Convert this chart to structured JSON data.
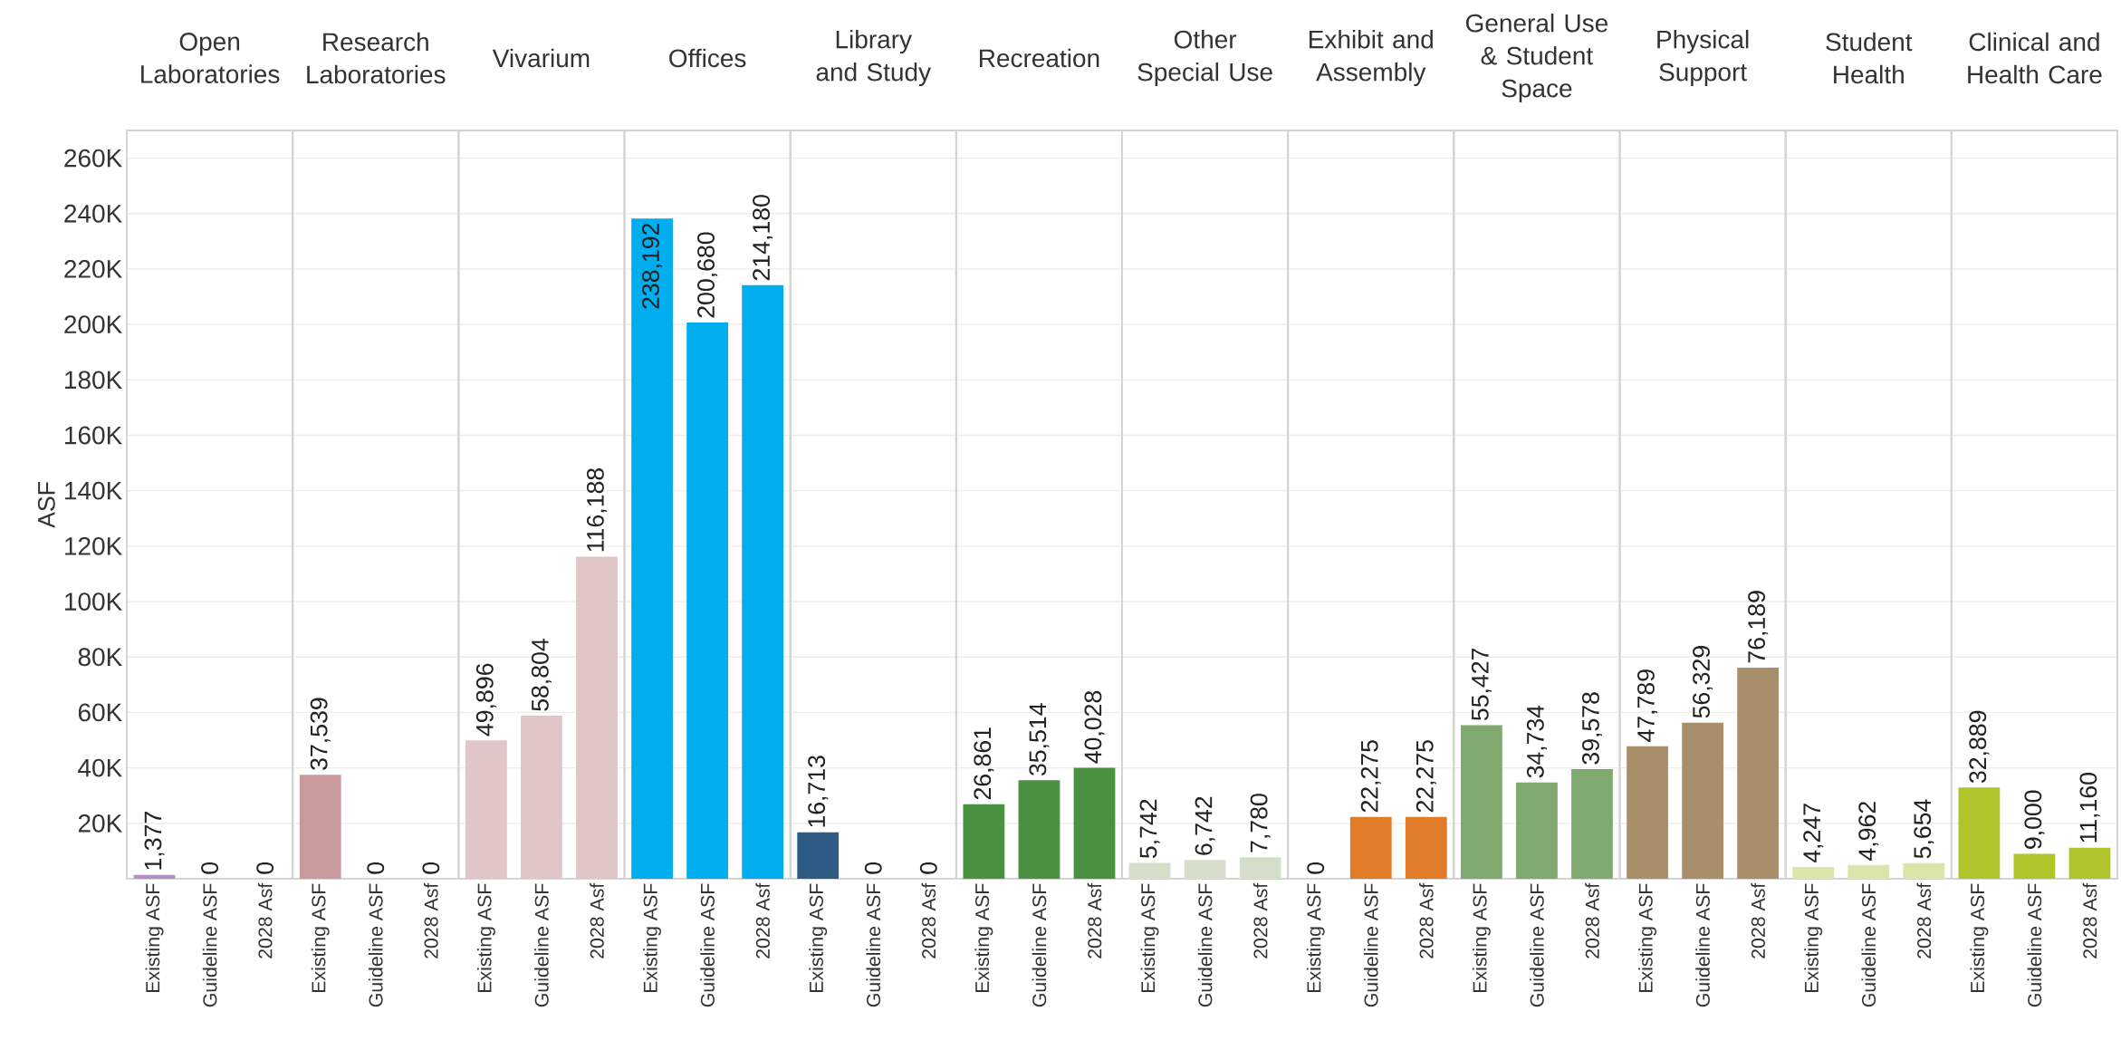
{
  "chart_data": [
    {
      "type": "bar",
      "title": "Open Laboratories",
      "ylabel": "ASF",
      "categories": [
        "Existing ASF",
        "Guideline ASF",
        "2028 Asf"
      ],
      "values": [
        1377,
        0,
        0
      ],
      "value_labels": [
        "1,377",
        "0",
        "0"
      ],
      "color": "#b48fc4",
      "ylim": [
        0,
        270000
      ],
      "yticks": [
        {
          "value": 20000,
          "label": "20K"
        },
        {
          "value": 40000,
          "label": "40K"
        },
        {
          "value": 60000,
          "label": "60K"
        },
        {
          "value": 80000,
          "label": "80K"
        },
        {
          "value": 100000,
          "label": "100K"
        },
        {
          "value": 120000,
          "label": "120K"
        },
        {
          "value": 140000,
          "label": "140K"
        },
        {
          "value": 160000,
          "label": "160K"
        },
        {
          "value": 180000,
          "label": "180K"
        },
        {
          "value": 200000,
          "label": "200K"
        },
        {
          "value": 220000,
          "label": "220K"
        },
        {
          "value": 240000,
          "label": "240K"
        },
        {
          "value": 260000,
          "label": "260K"
        }
      ],
      "grid": "y"
    },
    {
      "type": "bar",
      "title": "Research Laboratories",
      "categories": [
        "Existing ASF",
        "Guideline ASF",
        "2028 Asf"
      ],
      "values": [
        37539,
        0,
        0
      ],
      "value_labels": [
        "37,539",
        "0",
        "0"
      ],
      "color": "#c9999e",
      "ylim": [
        0,
        270000
      ],
      "yticks": [
        20000,
        40000,
        60000,
        80000,
        100000,
        120000,
        140000,
        160000,
        180000,
        200000,
        220000,
        240000,
        260000
      ],
      "grid": "y",
      "tick_labels": "x"
    },
    {
      "type": "bar",
      "title": "Vivarium",
      "categories": [
        "Existing ASF",
        "Guideline ASF",
        "2028 Asf"
      ],
      "values": [
        49896,
        58804,
        116188
      ],
      "value_labels": [
        "49,896",
        "58,804",
        "116,188"
      ],
      "color": "#e0c6c7",
      "ylim": [
        0,
        270000
      ],
      "yticks": [
        20000,
        40000,
        60000,
        80000,
        100000,
        120000,
        140000,
        160000,
        180000,
        200000,
        220000,
        240000,
        260000
      ],
      "grid": "y",
      "tick_labels": "x"
    },
    {
      "type": "bar",
      "title": "Offices",
      "categories": [
        "Existing ASF",
        "Guideline ASF",
        "2028 Asf"
      ],
      "values": [
        238192,
        200680,
        214180
      ],
      "value_labels": [
        "238,192",
        "200,680",
        "214,180"
      ],
      "color": "#00aeef",
      "ylim": [
        0,
        270000
      ],
      "yticks": [
        20000,
        40000,
        60000,
        80000,
        100000,
        120000,
        140000,
        160000,
        180000,
        200000,
        220000,
        240000,
        260000
      ],
      "grid": "y",
      "tick_labels": "x"
    },
    {
      "type": "bar",
      "title": "Library and Study",
      "categories": [
        "Existing ASF",
        "Guideline ASF",
        "2028 Asf"
      ],
      "values": [
        16713,
        0,
        0
      ],
      "value_labels": [
        "16,713",
        "0",
        "0"
      ],
      "color": "#2e5b84",
      "ylim": [
        0,
        270000
      ],
      "yticks": [
        20000,
        40000,
        60000,
        80000,
        100000,
        120000,
        140000,
        160000,
        180000,
        200000,
        220000,
        240000,
        260000
      ],
      "grid": "y",
      "tick_labels": "x"
    },
    {
      "type": "bar",
      "title": "Recreation",
      "categories": [
        "Existing ASF",
        "Guideline ASF",
        "2028 Asf"
      ],
      "values": [
        26861,
        35514,
        40028
      ],
      "value_labels": [
        "26,861",
        "35,514",
        "40,028"
      ],
      "color": "#4a9142",
      "ylim": [
        0,
        270000
      ],
      "yticks": [
        20000,
        40000,
        60000,
        80000,
        100000,
        120000,
        140000,
        160000,
        180000,
        200000,
        220000,
        240000,
        260000
      ],
      "grid": "y",
      "tick_labels": "x"
    },
    {
      "type": "bar",
      "title": "Other Special Use",
      "categories": [
        "Existing ASF",
        "Guideline ASF",
        "2028 Asf"
      ],
      "values": [
        5742,
        6742,
        7780
      ],
      "value_labels": [
        "5,742",
        "6,742",
        "7,780"
      ],
      "color": "#d5dec9",
      "ylim": [
        0,
        270000
      ],
      "yticks": [
        20000,
        40000,
        60000,
        80000,
        100000,
        120000,
        140000,
        160000,
        180000,
        200000,
        220000,
        240000,
        260000
      ],
      "grid": "y",
      "tick_labels": "x"
    },
    {
      "type": "bar",
      "title": "Exhibit and Assembly",
      "categories": [
        "Existing ASF",
        "Guideline ASF",
        "2028 Asf"
      ],
      "values": [
        0,
        22275,
        22275
      ],
      "value_labels": [
        "0",
        "22,275",
        "22,275"
      ],
      "color": "#e07b28",
      "ylim": [
        0,
        270000
      ],
      "yticks": [
        20000,
        40000,
        60000,
        80000,
        100000,
        120000,
        140000,
        160000,
        180000,
        200000,
        220000,
        240000,
        260000
      ],
      "grid": "y",
      "tick_labels": "x"
    },
    {
      "type": "bar",
      "title": "General Use & Student Space",
      "categories": [
        "Existing ASF",
        "Guideline ASF",
        "2028 Asf"
      ],
      "values": [
        55427,
        34734,
        39578
      ],
      "value_labels": [
        "55,427",
        "34,734",
        "39,578"
      ],
      "color": "#80a96f",
      "ylim": [
        0,
        270000
      ],
      "yticks": [
        20000,
        40000,
        60000,
        80000,
        100000,
        120000,
        140000,
        160000,
        180000,
        200000,
        220000,
        240000,
        260000
      ],
      "grid": "y",
      "tick_labels": "x"
    },
    {
      "type": "bar",
      "title": "Physical Support",
      "categories": [
        "Existing ASF",
        "Guideline ASF",
        "2028 Asf"
      ],
      "values": [
        47789,
        56329,
        76189
      ],
      "value_labels": [
        "47,789",
        "56,329",
        "76,189"
      ],
      "color": "#a88f69",
      "ylim": [
        0,
        270000
      ],
      "yticks": [
        20000,
        40000,
        60000,
        80000,
        100000,
        120000,
        140000,
        160000,
        180000,
        200000,
        220000,
        240000,
        260000
      ],
      "grid": "y",
      "tick_labels": "x"
    },
    {
      "type": "bar",
      "title": "Student Health",
      "categories": [
        "Existing ASF",
        "Guideline ASF",
        "2028 Asf"
      ],
      "values": [
        4247,
        4962,
        5654
      ],
      "value_labels": [
        "4,247",
        "4,962",
        "5,654"
      ],
      "color": "#dbe4a9",
      "ylim": [
        0,
        270000
      ],
      "yticks": [
        20000,
        40000,
        60000,
        80000,
        100000,
        120000,
        140000,
        160000,
        180000,
        200000,
        220000,
        240000,
        260000
      ],
      "grid": "y",
      "tick_labels": "x"
    },
    {
      "type": "bar",
      "title": "Clinical and Health Care",
      "categories": [
        "Existing ASF",
        "Guideline ASF",
        "2028 Asf"
      ],
      "values": [
        32889,
        9000,
        11160
      ],
      "value_labels": [
        "32,889",
        "9,000",
        "11,160"
      ],
      "color": "#b2c42c",
      "ylim": [
        0,
        270000
      ],
      "yticks": [
        20000,
        40000,
        60000,
        80000,
        100000,
        120000,
        140000,
        160000,
        180000,
        200000,
        220000,
        240000,
        260000
      ],
      "grid": "y",
      "tick_labels": "x"
    }
  ]
}
